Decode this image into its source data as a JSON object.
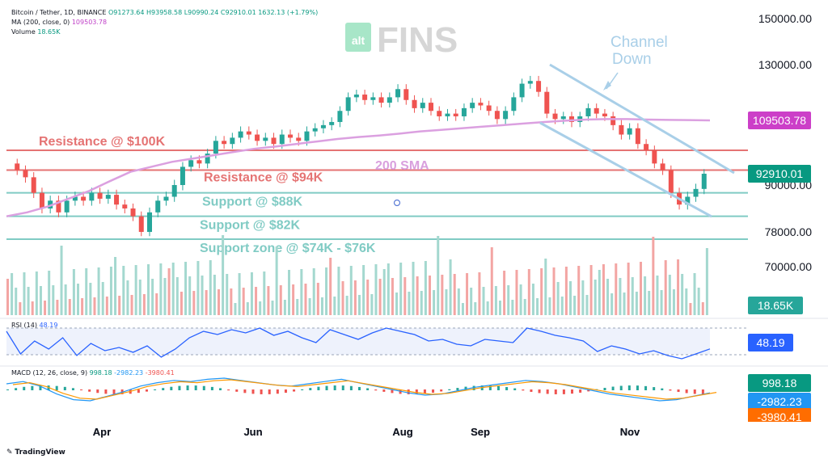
{
  "header": {
    "symbol": "Bitcoin / Tether, 1D, BINANCE",
    "ohlc": "O91273.64 H93958.58 L90990.24 C92910.01 1632.13 (+1.79%)",
    "ma_label": "MA (200, close, 0)",
    "ma_value": "109503.78",
    "volume_label": "Volume",
    "volume_value": "18.65K",
    "rsi_label": "RSI (14)",
    "rsi_value": "48.19",
    "macd_label": "MACD (12, 26, close, 9)",
    "macd_values": [
      "998.18",
      "-2982.23",
      "-3980.41"
    ]
  },
  "watermark": {
    "small": "alt",
    "big": "FINS"
  },
  "branding": "TradingView",
  "colors": {
    "up": "#26a69a",
    "down": "#ef5350",
    "support": "#80cbc4",
    "resistance": "#e57373",
    "sma": "#dba0e0",
    "channel": "#a9cfe8",
    "rsi": "#2962ff",
    "macd_line": "#2196f3",
    "signal_line": "#ff9800"
  },
  "chart_data": {
    "type": "candlestick",
    "y_ticks": [
      "150000.00",
      "130000.00",
      "90000.00",
      "78000.00",
      "70000.00"
    ],
    "x_ticks": [
      "Apr",
      "Jun",
      "Aug",
      "Sep",
      "Nov"
    ],
    "price_tags": [
      {
        "label": "109503.78",
        "kind": "sma",
        "value": 109503.78
      },
      {
        "label": "92910.01",
        "kind": "last",
        "value": 92910.01
      },
      {
        "label": "18.65K",
        "kind": "volume"
      }
    ],
    "levels": [
      {
        "label": "Resistance @ $100K",
        "value": 100000,
        "kind": "resistance"
      },
      {
        "label": "Resistance @ $94K",
        "value": 94000,
        "kind": "resistance"
      },
      {
        "label": "Support @ $88K",
        "value": 88000,
        "kind": "support"
      },
      {
        "label": "Support @ $82K",
        "value": 82000,
        "kind": "support"
      },
      {
        "label": "Support zone @ $74K - $76K",
        "value": 76000,
        "kind": "support"
      }
    ],
    "annotations": [
      "Channel Down",
      "200 SMA"
    ],
    "close_path": [
      96000,
      94000,
      92000,
      88000,
      84000,
      86000,
      83000,
      86000,
      87000,
      86000,
      88000,
      86500,
      87500,
      85000,
      84000,
      82000,
      78000,
      83000,
      86000,
      87000,
      90000,
      95000,
      97000,
      96000,
      99000,
      103000,
      102000,
      104000,
      106000,
      105000,
      103000,
      104000,
      102000,
      105000,
      104000,
      103000,
      106000,
      107000,
      108000,
      109000,
      113000,
      118000,
      119000,
      117000,
      118000,
      116000,
      118000,
      121000,
      117000,
      114000,
      116000,
      113000,
      111000,
      112000,
      111000,
      114000,
      116000,
      115000,
      113000,
      110000,
      113000,
      118000,
      123000,
      124000,
      120000,
      112000,
      110000,
      111000,
      109000,
      111000,
      114000,
      112000,
      111000,
      108000,
      105000,
      107000,
      102000,
      100000,
      96000,
      94000,
      88000,
      85000,
      87000,
      89000,
      92910
    ],
    "sma_path": [
      82000,
      83000,
      84500,
      86500,
      88500,
      91000,
      93500,
      95000,
      96500,
      97500,
      98500,
      99500,
      100500,
      101200,
      102000,
      102800,
      103600,
      104200,
      104700,
      105300,
      106000,
      106500,
      107000,
      107500,
      108000,
      108500,
      109000,
      109400,
      109800,
      110000,
      110000,
      109800,
      109700,
      109600,
      109503.78
    ],
    "rsi_path": [
      70,
      42,
      58,
      48,
      62,
      40,
      55,
      46,
      50,
      44,
      52,
      38,
      48,
      62,
      70,
      66,
      72,
      68,
      74,
      65,
      70,
      62,
      56,
      72,
      66,
      60,
      68,
      74,
      70,
      66,
      58,
      60,
      54,
      52,
      60,
      58,
      56,
      74,
      70,
      65,
      62,
      58,
      45,
      52,
      48,
      42,
      46,
      40,
      36,
      42,
      48.19
    ],
    "macd_path": [
      0.5,
      0.7,
      0.3,
      -0.4,
      -0.9,
      -1.0,
      -0.6,
      -0.2,
      0.3,
      0.6,
      0.8,
      0.7,
      0.9,
      1.0,
      0.8,
      0.6,
      0.4,
      0.3,
      0.5,
      0.7,
      0.9,
      0.6,
      0.3,
      0.0,
      -0.3,
      -0.5,
      -0.4,
      -0.1,
      0.2,
      0.4,
      0.6,
      0.8,
      0.7,
      0.5,
      0.2,
      -0.1,
      -0.4,
      -0.6,
      -0.8,
      -1.0,
      -0.9,
      -0.6,
      -0.3
    ]
  }
}
